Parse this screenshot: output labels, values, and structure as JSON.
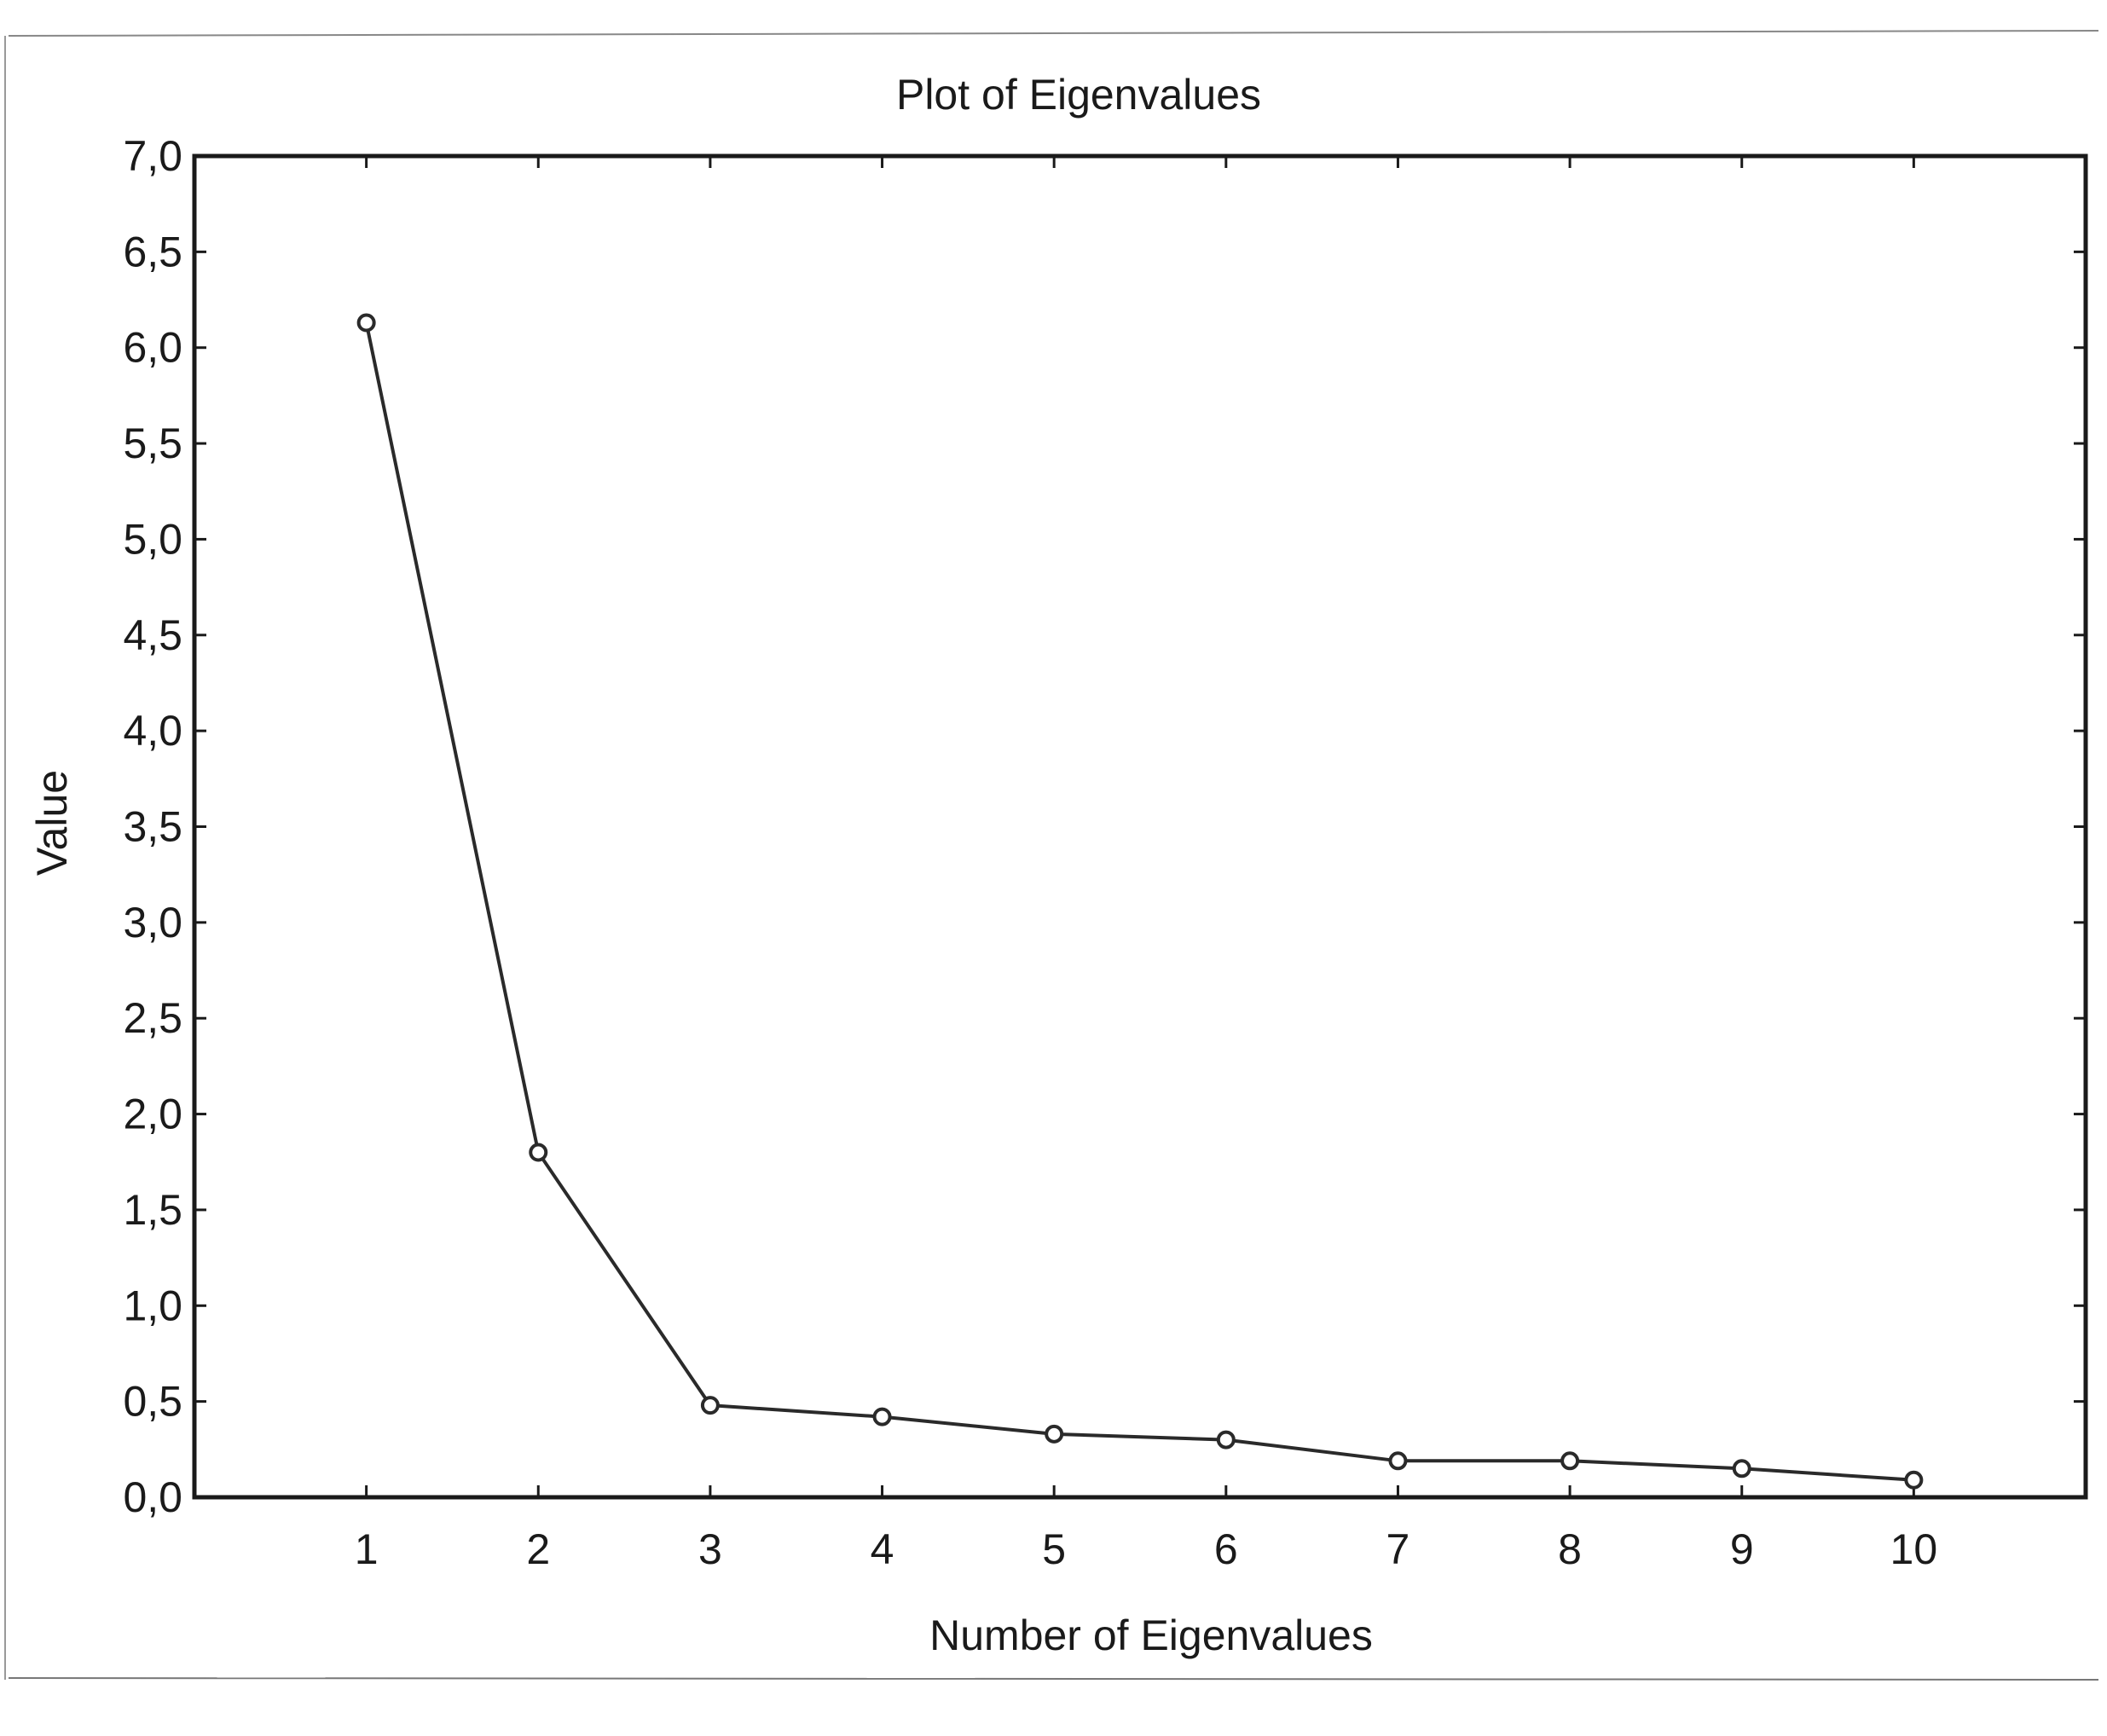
{
  "chart_data": {
    "type": "line",
    "title": "Plot of Eigenvalues",
    "xlabel": "Number of Eigenvalues",
    "ylabel": "Value",
    "x": [
      1,
      2,
      3,
      4,
      5,
      6,
      7,
      8,
      9,
      10
    ],
    "x_tick_labels": [
      "1",
      "2",
      "3",
      "4",
      "5",
      "6",
      "7",
      "8",
      "9",
      "10"
    ],
    "xlim": [
      0,
      11
    ],
    "ylim": [
      0,
      7
    ],
    "y_ticks": [
      0,
      0.5,
      1,
      1.5,
      2,
      2.5,
      3,
      3.5,
      4,
      4.5,
      5,
      5.5,
      6,
      6.5,
      7
    ],
    "y_tick_labels": [
      "0,0",
      "0,5",
      "1,0",
      "1,5",
      "2,0",
      "2,5",
      "3,0",
      "3,5",
      "4,0",
      "4,5",
      "5,0",
      "5,5",
      "6,0",
      "6,5",
      "7,0"
    ],
    "series": [
      {
        "values": [
          6.13,
          1.8,
          0.48,
          0.42,
          0.33,
          0.3,
          0.19,
          0.19,
          0.15,
          0.09
        ]
      }
    ],
    "marker": "open-circle",
    "grid": false,
    "colors": {
      "line": "#2a2a2a",
      "axis": "#1a1a1a",
      "background": "#ffffff"
    }
  }
}
